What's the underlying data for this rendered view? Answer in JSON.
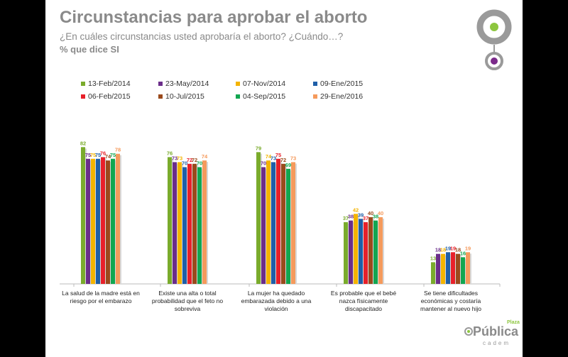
{
  "header": {
    "title": "Circunstancias para aprobar el aborto",
    "subtitle": "¿En cuáles circunstancias usted aprobaría el aborto? ¿Cuándo…?",
    "note": "% que dice SI"
  },
  "brand": {
    "logo_main": "Pública",
    "logo_top": "Plaza",
    "logo_sub": "cadem",
    "accent_green": "#8dc63f",
    "accent_purple": "#7b2a8a",
    "gray": "#9a9a9a"
  },
  "chart_data": {
    "type": "bar",
    "categories": [
      [
        "La salud de la madre está en",
        "riesgo por el embarazo"
      ],
      [
        "Existe una alta o total",
        "probabilidad que el feto no",
        "sobreviva"
      ],
      [
        "La mujer ha quedado",
        "embarazada debido a una",
        "violación"
      ],
      [
        "Es probable que el bebé",
        "nazca físicamente",
        "discapacitado"
      ],
      [
        "Se tiene dificultades",
        "económicas y costaría",
        "mantener al nuevo hijo"
      ]
    ],
    "series": [
      {
        "name": "13-Feb/2014",
        "color": "#7aab2c",
        "values": [
          82,
          76,
          79,
          37,
          13
        ]
      },
      {
        "name": "23-May/2014",
        "color": "#6b2d8a",
        "values": [
          75,
          73,
          70,
          38,
          18
        ]
      },
      {
        "name": "07-Nov/2014",
        "color": "#f4b400",
        "values": [
          75,
          73,
          74,
          42,
          18
        ]
      },
      {
        "name": "09-Ene/2015",
        "color": "#1f5fa8",
        "values": [
          75,
          70,
          73,
          39,
          19
        ]
      },
      {
        "name": "06-Feb/2015",
        "color": "#e8202a",
        "values": [
          76,
          72,
          75,
          37,
          19
        ]
      },
      {
        "name": "10-Jul/2015",
        "color": "#9a4a1c",
        "values": [
          74,
          72,
          72,
          40,
          18
        ]
      },
      {
        "name": "04-Sep/2015",
        "color": "#12a650",
        "values": [
          75,
          70,
          69,
          38,
          16
        ]
      },
      {
        "name": "29-Ene/2016",
        "color": "#f59a5c",
        "values": [
          78,
          74,
          73,
          40,
          19
        ]
      }
    ],
    "ylim": [
      0,
      100
    ],
    "grid": false,
    "legend_position": "top"
  }
}
